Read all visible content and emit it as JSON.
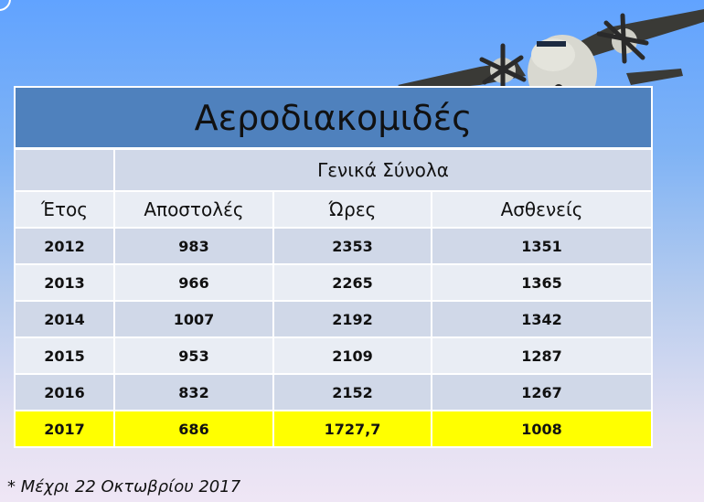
{
  "title": "Αεροδιακομιδές",
  "group_header": "Γενικά Σύνολα",
  "columns": [
    "Έτος",
    "Αποστολές",
    "Ώρες",
    "Ασθενείς"
  ],
  "rows": [
    [
      "2012",
      "983",
      "2353",
      "1351"
    ],
    [
      "2013",
      "966",
      "2265",
      "1365"
    ],
    [
      "2014",
      "1007",
      "2192",
      "1342"
    ],
    [
      "2015",
      "953",
      "2109",
      "1287"
    ],
    [
      "2016",
      "832",
      "2152",
      "1267"
    ],
    [
      "2017",
      "686",
      "1727,7",
      "1008"
    ]
  ],
  "highlight_color": "#ffff00",
  "header_color": "#4f81bd",
  "footnote": "* Μέχρι 22 Οκτωβρίου 2017"
}
